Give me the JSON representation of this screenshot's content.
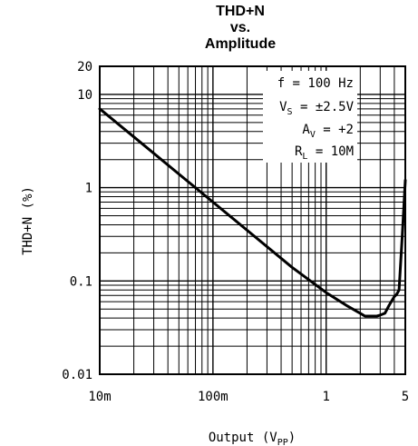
{
  "chart_data": {
    "type": "line",
    "title_lines": [
      "THD+N",
      "vs.",
      "Amplitude"
    ],
    "xlabel": "Output (V",
    "xlabel_sub": "PP",
    "xlabel_close": ")",
    "ylabel": "THD+N (%)",
    "x_scale": "log",
    "y_scale": "log",
    "xlim": [
      0.01,
      5
    ],
    "ylim": [
      0.01,
      20
    ],
    "grid": true,
    "x_ticks": [
      {
        "value": 0.01,
        "label": "10m"
      },
      {
        "value": 0.1,
        "label": "100m"
      },
      {
        "value": 1,
        "label": "1"
      },
      {
        "value": 5,
        "label": "5"
      }
    ],
    "y_ticks": [
      {
        "value": 0.01,
        "label": "0.01"
      },
      {
        "value": 0.1,
        "label": "0.1"
      },
      {
        "value": 1,
        "label": "1"
      },
      {
        "value": 10,
        "label": "10"
      },
      {
        "value": 20,
        "label": "20"
      }
    ],
    "annotations": {
      "f": "f = 100 Hz",
      "vs_main": "V",
      "vs_sub": "S",
      "vs_rest": " = ±2.5V",
      "av_main": "A",
      "av_sub": "V",
      "av_rest": " = +2",
      "rl_main": "R",
      "rl_sub": "L",
      "rl_rest": " = 10M"
    },
    "series": [
      {
        "x": [
          0.01,
          0.02,
          0.05,
          0.1,
          0.2,
          0.5,
          1,
          1.5,
          2,
          2.2,
          2.5,
          2.8,
          3.0,
          3.3,
          3.6,
          4.0,
          4.2,
          4.4,
          4.7,
          5
        ],
        "y": [
          7,
          3.5,
          1.4,
          0.7,
          0.35,
          0.14,
          0.075,
          0.055,
          0.045,
          0.042,
          0.042,
          0.042,
          0.043,
          0.045,
          0.055,
          0.068,
          0.072,
          0.08,
          0.3,
          1.2
        ]
      }
    ],
    "colors": {
      "line": "#000000",
      "grid": "#000000"
    }
  }
}
